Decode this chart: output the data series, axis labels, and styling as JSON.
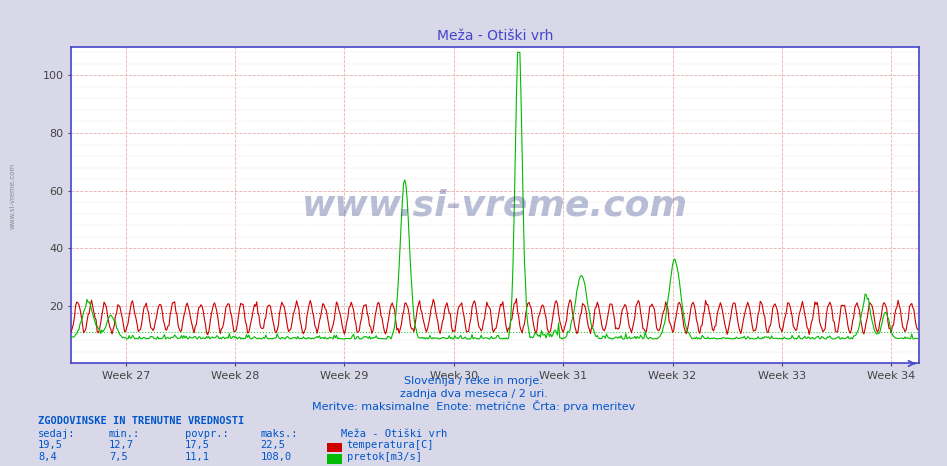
{
  "title": "Meža - Otiški vrh",
  "bg_color": "#d8d8e8",
  "plot_bg_color": "#ffffff",
  "xlim": [
    0,
    744
  ],
  "ylim": [
    0,
    110
  ],
  "yticks": [
    20,
    40,
    60,
    80,
    100
  ],
  "week_labels": [
    "Week 27",
    "Week 28",
    "Week 29",
    "Week 30",
    "Week 31",
    "Week 32",
    "Week 33",
    "Week 34"
  ],
  "week_positions": [
    48,
    144,
    240,
    336,
    432,
    528,
    624,
    720
  ],
  "temp_color": "#cc0000",
  "flow_color": "#00bb00",
  "temp_avg": 17.5,
  "flow_avg": 11.1,
  "subtitle1": "Slovenija / reke in morje.",
  "subtitle2": "zadnja dva meseca / 2 uri.",
  "subtitle3": "Meritve: maksimalne  Enote: metrične  Črta: prva meritev",
  "footer_title": "ZGODOVINSKE IN TRENUTNE VREDNOSTI",
  "col_headers": [
    "sedaj:",
    "min.:",
    "povpr.:",
    "maks.:"
  ],
  "temp_row": [
    "19,5",
    "12,7",
    "17,5",
    "22,5"
  ],
  "flow_row": [
    "8,4",
    "7,5",
    "11,1",
    "108,0"
  ],
  "label_temp": "temperatura[C]",
  "label_flow": "pretok[m3/s]",
  "station_label": "Meža - Otiški vrh",
  "watermark": "www.si-vreme.com",
  "axis_color": "#4444cc",
  "text_color": "#0055cc",
  "title_color": "#4444cc"
}
